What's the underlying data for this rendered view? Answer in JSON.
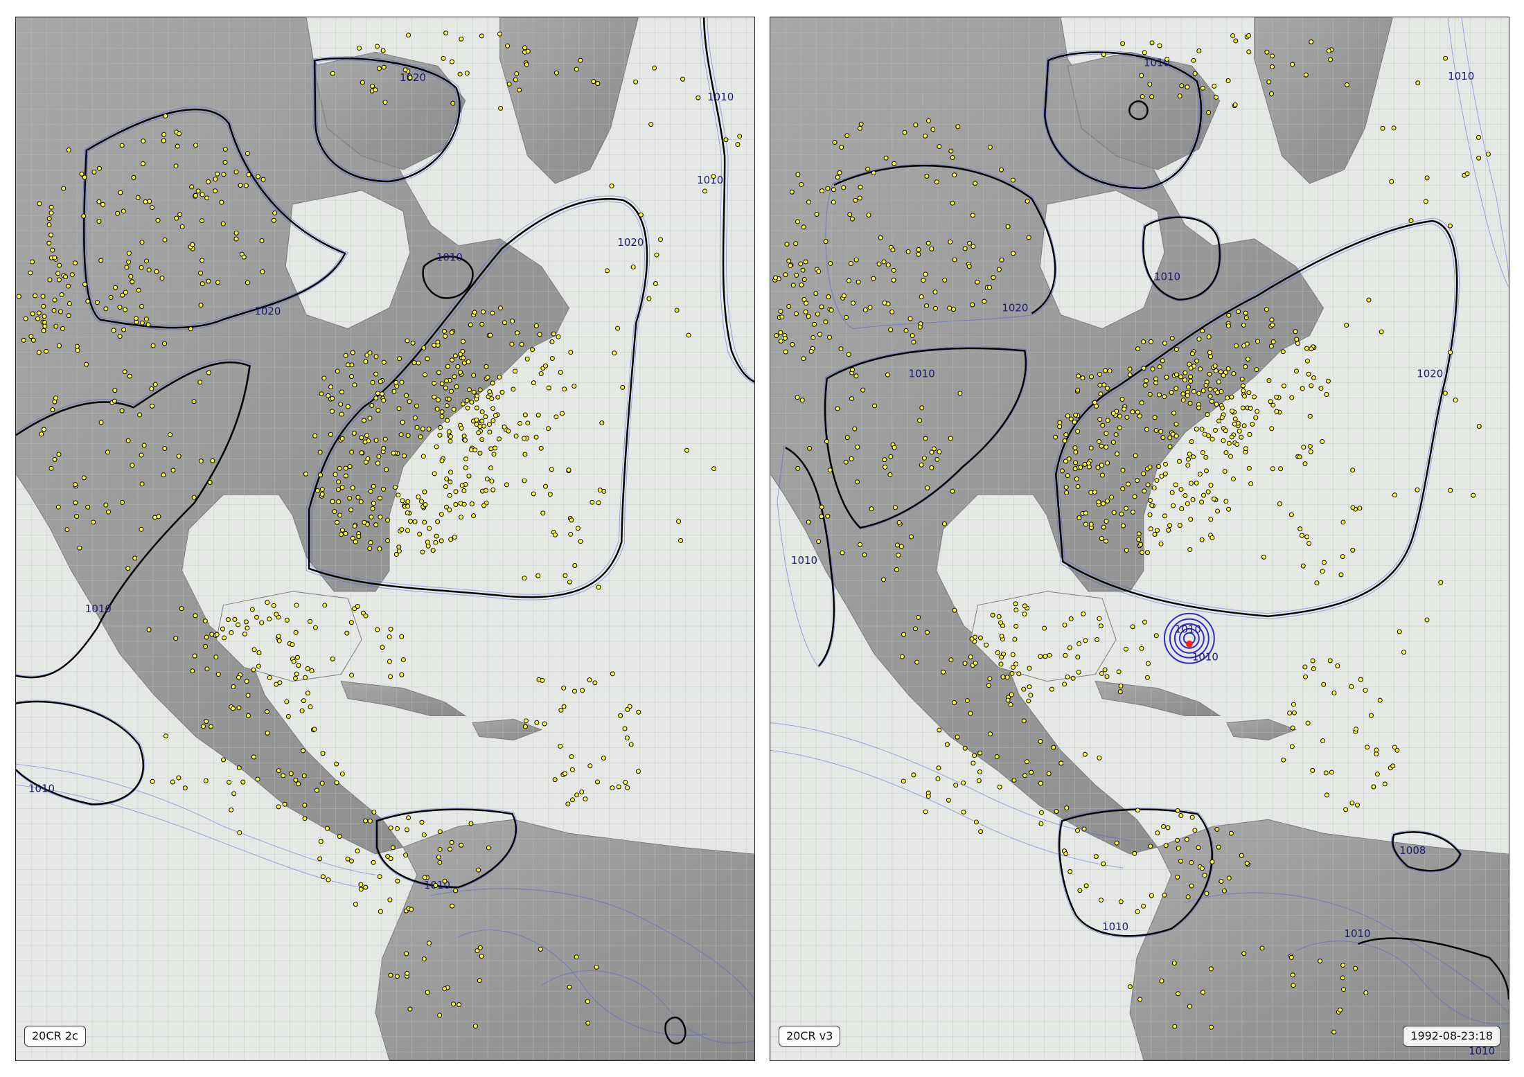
{
  "panels": [
    {
      "id": "left",
      "label": "20CR 2c",
      "contour_labels": [
        "1020",
        "1020",
        "1020",
        "1010",
        "1010",
        "1010",
        "1010",
        "1010",
        "1010"
      ]
    },
    {
      "id": "right",
      "label": "20CR v3",
      "timestamp": "1992-08-23:18",
      "contour_labels": [
        "1010",
        "1020",
        "1020",
        "1010",
        "1010",
        "1010",
        "1010",
        "1010",
        "1010",
        "1008",
        "1010",
        "1010",
        "1010"
      ]
    }
  ],
  "colors": {
    "ocean": "#e6e8e6",
    "land": "#9a9a9a",
    "grid": "#b8c4b8",
    "ensemble_contour": "#4a5ad8",
    "mean_contour": "#000000",
    "observation_fill": "#ffff33",
    "storm_marker": "#ff2020"
  },
  "date": "1992-08-23:18"
}
